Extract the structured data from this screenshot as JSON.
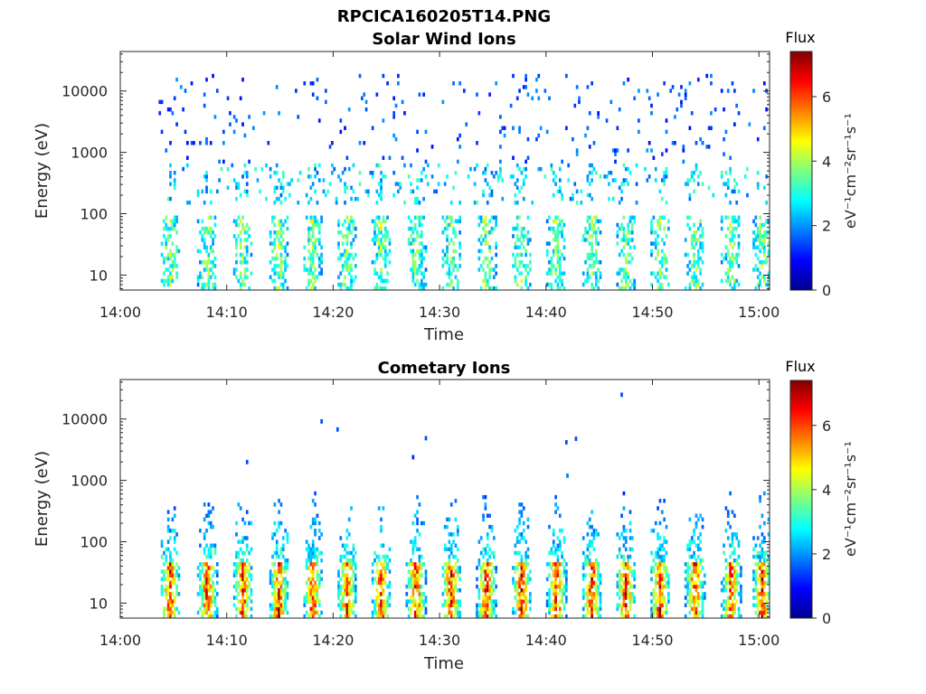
{
  "figure": {
    "main_title": "RPCICA160205T14.PNG"
  },
  "colorbar": {
    "title": "Flux",
    "unit_label": "eV⁻¹cm⁻²sr⁻¹s⁻¹",
    "range": [
      0,
      7.4
    ],
    "ticks": [
      "0",
      "2",
      "4",
      "6"
    ],
    "colormap": "jet"
  },
  "chart_data": [
    {
      "type": "heatmap",
      "title": "Solar Wind Ions",
      "xlabel": "Time",
      "ylabel": "Energy (eV)",
      "xticks": [
        "14:00",
        "14:10",
        "14:20",
        "14:30",
        "14:40",
        "14:50",
        "15:00"
      ],
      "xlim_minutes": [
        0,
        61
      ],
      "yticks": [
        "10",
        "100",
        "1000",
        "10000"
      ],
      "yscale": "log",
      "ylim": [
        5.7,
        44000
      ],
      "grid": false,
      "pattern": {
        "burst_times_minutes": [
          4.6,
          8.1,
          11.4,
          14.8,
          18.0,
          21.2,
          24.4,
          27.7,
          31.0,
          34.3,
          37.6,
          40.9,
          44.2,
          47.4,
          50.6,
          53.9,
          57.3,
          60.2
        ],
        "low_energy_range_eV": [
          6,
          100
        ],
        "low_energy_peak_flux": 4.5,
        "mid_band_eV": [
          150,
          700
        ],
        "mid_band_flux": 2.6,
        "sparse_high_energy_eV": [
          700,
          20000
        ],
        "sparse_flux": 1.6
      }
    },
    {
      "type": "heatmap",
      "title": "Cometary Ions",
      "xlabel": "Time",
      "ylabel": "Energy (eV)",
      "xticks": [
        "14:00",
        "14:10",
        "14:20",
        "14:30",
        "14:40",
        "14:50",
        "15:00"
      ],
      "xlim_minutes": [
        0,
        61
      ],
      "yticks": [
        "10",
        "100",
        "1000",
        "10000"
      ],
      "yscale": "log",
      "ylim": [
        5.7,
        44000
      ],
      "grid": false,
      "pattern": {
        "burst_times_minutes": [
          4.6,
          8.1,
          11.4,
          14.8,
          18.0,
          21.2,
          24.4,
          27.7,
          31.0,
          34.3,
          37.6,
          40.9,
          44.2,
          47.4,
          50.6,
          53.9,
          57.3,
          60.2
        ],
        "core_energy_range_eV": [
          6,
          45
        ],
        "core_peak_flux": 7.2,
        "tail_energy_range_eV": [
          45,
          700
        ],
        "tail_flux": 3.0,
        "sparse_high_points": [
          {
            "t": 11.8,
            "e": 2000,
            "flux": 1.5
          },
          {
            "t": 18.8,
            "e": 9200,
            "flux": 1.5
          },
          {
            "t": 20.3,
            "e": 6800,
            "flux": 1.5
          },
          {
            "t": 27.4,
            "e": 2400,
            "flux": 1.2
          },
          {
            "t": 28.6,
            "e": 4900,
            "flux": 1.5
          },
          {
            "t": 41.8,
            "e": 4200,
            "flux": 1.5
          },
          {
            "t": 42.7,
            "e": 4800,
            "flux": 1.5
          },
          {
            "t": 47.0,
            "e": 25000,
            "flux": 1.5
          },
          {
            "t": 41.9,
            "e": 1200,
            "flux": 1.8
          }
        ]
      }
    }
  ]
}
